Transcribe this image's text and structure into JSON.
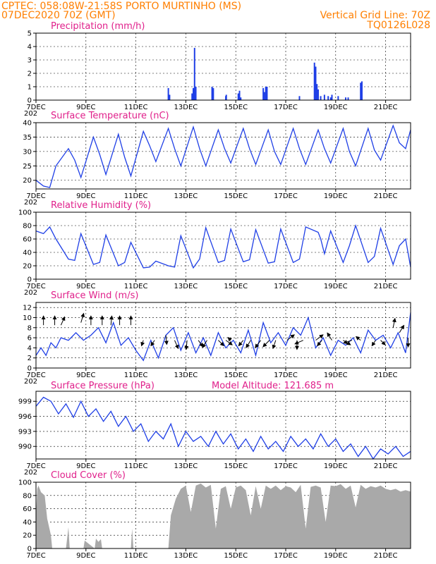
{
  "header": {
    "line1_left": "CPTEC:   058:08W-21:58S   PORTO MURTINHO (MS)",
    "line2_left": "07DEC2020 70Z (GMT)",
    "line2_right": "Vertical Grid Line: 70Z",
    "line3_right": "TQ0126L028"
  },
  "x_axis": {
    "labels": [
      "7DEC",
      "9DEC",
      "11DEC",
      "13DEC",
      "15DEC",
      "17DEC",
      "19DEC",
      "21DEC"
    ],
    "days": [
      7,
      9,
      11,
      13,
      15,
      17,
      19,
      21
    ],
    "range_days": [
      7,
      22
    ],
    "subscript": "202"
  },
  "model_altitude_label": "Model Altitude: 121.685 m",
  "colors": {
    "line": "#1f3fe6",
    "bar": "#1f3fe6",
    "cloud": "#a9a9a9",
    "arrow": "#000000",
    "title": "#e0208b",
    "header": "#ff7f00"
  },
  "chart_data": [
    {
      "type": "bar",
      "title": "Precipitation (mm/h)",
      "ylim": [
        0,
        5
      ],
      "yticks": [
        0,
        1,
        2,
        3,
        4,
        5
      ],
      "grid": true,
      "x_days": [
        12.3,
        12.35,
        13.25,
        13.3,
        13.35,
        13.4,
        14.05,
        14.1,
        14.6,
        14.62,
        15.1,
        15.15,
        15.2,
        16.1,
        16.15,
        16.2,
        16.25,
        17.55,
        18.15,
        18.2,
        18.25,
        18.3,
        18.4,
        18.55,
        18.7,
        18.8,
        18.85,
        19.1,
        19.4,
        19.5,
        20.0,
        20.05
      ],
      "values": [
        0.9,
        0.4,
        0.5,
        0.9,
        3.9,
        1.0,
        1.0,
        0.9,
        0.3,
        0.4,
        0.5,
        0.7,
        0.2,
        0.9,
        0.6,
        1.0,
        1.0,
        0.3,
        2.8,
        2.5,
        1.2,
        0.8,
        0.3,
        0.4,
        0.3,
        0.2,
        0.4,
        0.3,
        0.2,
        0.2,
        1.3,
        1.4
      ]
    },
    {
      "type": "line",
      "title": "Surface Temperature (nC)",
      "ylim": [
        17,
        40
      ],
      "yticks": [
        20,
        25,
        30,
        35,
        40
      ],
      "grid": true,
      "x_days": [
        7.0,
        7.3,
        7.55,
        7.8,
        8.3,
        8.55,
        8.8,
        9.3,
        9.55,
        9.8,
        10.3,
        10.55,
        10.8,
        11.3,
        11.55,
        11.8,
        12.3,
        12.55,
        12.8,
        13.3,
        13.55,
        13.8,
        14.3,
        14.55,
        14.8,
        15.3,
        15.55,
        15.8,
        16.3,
        16.55,
        16.8,
        17.3,
        17.55,
        17.8,
        18.3,
        18.55,
        18.8,
        19.3,
        19.55,
        19.8,
        20.3,
        20.55,
        20.8,
        21.3,
        21.55,
        21.8,
        22.0
      ],
      "values": [
        20,
        18,
        17.5,
        25,
        31,
        27,
        21,
        35,
        29,
        22,
        36,
        28,
        21.5,
        37,
        32,
        26.5,
        38,
        31,
        25,
        38.5,
        31,
        25,
        37.5,
        31,
        26,
        38,
        31,
        25.5,
        37.5,
        30,
        25.5,
        38,
        31,
        25.5,
        37.5,
        31,
        26,
        38,
        30,
        25,
        38,
        30.5,
        27,
        39,
        33,
        31,
        37.5
      ]
    },
    {
      "type": "line",
      "title": "Relative Humidity (%)",
      "ylim": [
        0,
        100
      ],
      "yticks": [
        0,
        20,
        40,
        60,
        80,
        100
      ],
      "grid": true,
      "x_days": [
        7.0,
        7.3,
        7.55,
        7.8,
        8.3,
        8.55,
        8.8,
        9.3,
        9.55,
        9.8,
        10.3,
        10.55,
        10.8,
        11.3,
        11.55,
        11.8,
        12.3,
        12.55,
        12.8,
        13.3,
        13.55,
        13.8,
        14.3,
        14.55,
        14.8,
        15.3,
        15.55,
        15.8,
        16.3,
        16.55,
        16.8,
        17.3,
        17.55,
        17.8,
        18.3,
        18.4,
        18.55,
        18.8,
        19.3,
        19.55,
        19.8,
        20.3,
        20.55,
        20.8,
        21.3,
        21.55,
        21.8,
        22.0
      ],
      "values": [
        72,
        68,
        78,
        60,
        30,
        28,
        68,
        22,
        25,
        66,
        20,
        25,
        55,
        17,
        18,
        27,
        20,
        18,
        65,
        17,
        30,
        77,
        25,
        28,
        75,
        26,
        29,
        74,
        24,
        26,
        75,
        25,
        30,
        78,
        70,
        60,
        38,
        72,
        25,
        50,
        80,
        25,
        34,
        76,
        22,
        50,
        60,
        18
      ]
    },
    {
      "type": "line",
      "title": "Surface Wind (m/s)",
      "ylim": [
        0,
        13
      ],
      "yticks": [
        0,
        2,
        4,
        6,
        8,
        10,
        12
      ],
      "grid": true,
      "x_days": [
        7.0,
        7.2,
        7.4,
        7.6,
        7.8,
        8.0,
        8.3,
        8.6,
        8.9,
        9.2,
        9.5,
        9.8,
        10.1,
        10.4,
        10.7,
        11.0,
        11.3,
        11.6,
        11.9,
        12.2,
        12.5,
        12.8,
        13.1,
        13.4,
        13.7,
        14.0,
        14.3,
        14.6,
        14.9,
        15.2,
        15.5,
        15.8,
        16.1,
        16.4,
        16.7,
        17.0,
        17.3,
        17.6,
        17.9,
        18.2,
        18.5,
        18.8,
        19.1,
        19.4,
        19.7,
        20.0,
        20.3,
        20.6,
        20.9,
        21.2,
        21.5,
        21.8,
        22.0
      ],
      "values": [
        2.5,
        4,
        2.5,
        5,
        4,
        6,
        5.5,
        7,
        5.5,
        6.5,
        8,
        5,
        9,
        4.5,
        6,
        3.5,
        1.5,
        5.5,
        2,
        6.5,
        8,
        3.5,
        7,
        3,
        6,
        2.5,
        7,
        4,
        5.5,
        3,
        7.5,
        2.5,
        9,
        5,
        7,
        4.5,
        8,
        6.5,
        10,
        4,
        6,
        2.5,
        5.5,
        4.5,
        6,
        3,
        7.5,
        5.5,
        6.5,
        4,
        7,
        3,
        11
      ]
    },
    {
      "type": "line",
      "title": "Surface Pressure (hPa)",
      "ylim": [
        987.5,
        1001
      ],
      "yticks": [
        990,
        993,
        996,
        999
      ],
      "grid": true,
      "x_days": [
        7.0,
        7.3,
        7.6,
        7.9,
        8.2,
        8.5,
        8.8,
        9.1,
        9.4,
        9.7,
        10.0,
        10.3,
        10.6,
        10.9,
        11.2,
        11.5,
        11.8,
        12.1,
        12.4,
        12.7,
        13.0,
        13.3,
        13.6,
        13.9,
        14.2,
        14.5,
        14.8,
        15.1,
        15.4,
        15.7,
        16.0,
        16.3,
        16.6,
        16.9,
        17.2,
        17.5,
        17.8,
        18.1,
        18.4,
        18.7,
        19.0,
        19.3,
        19.6,
        19.9,
        20.2,
        20.5,
        20.8,
        21.1,
        21.4,
        21.7,
        22.0
      ],
      "values": [
        998,
        999.8,
        999,
        996.5,
        998.5,
        995.8,
        999,
        996,
        997.5,
        995,
        997,
        994,
        996,
        993,
        994.5,
        991,
        993,
        991.5,
        994.5,
        990,
        993,
        991,
        992,
        990,
        993,
        990.5,
        992.5,
        989.5,
        991.5,
        989,
        992,
        989.5,
        991,
        989,
        992,
        990,
        991.5,
        989.5,
        992.5,
        990,
        991.5,
        989,
        990.5,
        988,
        990,
        987.5,
        989.5,
        988.5,
        990,
        988,
        989
      ]
    },
    {
      "type": "area",
      "title": "Cloud Cover (%)",
      "ylim": [
        0,
        100
      ],
      "yticks": [
        0,
        20,
        40,
        60,
        80,
        100
      ],
      "grid": true,
      "x_days": [
        7.0,
        7.05,
        7.1,
        7.2,
        7.35,
        7.45,
        7.6,
        7.65,
        8.2,
        8.3,
        8.35,
        8.9,
        8.95,
        9.35,
        9.4,
        9.5,
        9.6,
        9.65,
        10.8,
        10.85,
        10.9,
        12.3,
        12.4,
        12.6,
        12.8,
        13.0,
        13.2,
        13.4,
        13.6,
        13.8,
        14.0,
        14.2,
        14.4,
        14.6,
        14.8,
        15.0,
        15.2,
        15.4,
        15.6,
        15.8,
        16.0,
        16.2,
        16.4,
        16.6,
        16.8,
        17.0,
        17.2,
        17.4,
        17.6,
        17.8,
        18.0,
        18.2,
        18.4,
        18.6,
        18.8,
        19.0,
        19.2,
        19.4,
        19.6,
        19.8,
        20.0,
        20.2,
        20.4,
        20.6,
        20.8,
        21.0,
        21.2,
        21.4,
        21.6,
        21.8,
        22.0
      ],
      "values": [
        50,
        90,
        95,
        85,
        80,
        45,
        20,
        0,
        0,
        32,
        0,
        0,
        12,
        0,
        15,
        10,
        14,
        0,
        0,
        30,
        0,
        0,
        50,
        75,
        90,
        95,
        55,
        95,
        98,
        92,
        96,
        30,
        90,
        94,
        60,
        92,
        95,
        88,
        50,
        94,
        60,
        95,
        90,
        95,
        88,
        94,
        92,
        85,
        96,
        30,
        93,
        95,
        92,
        40,
        95,
        94,
        97,
        90,
        95,
        62,
        96,
        90,
        94,
        92,
        95,
        90,
        88,
        90,
        86,
        88,
        86
      ]
    }
  ],
  "wind_arrows": {
    "x_days": [
      7.3,
      7.75,
      8.0,
      8.8,
      9.2,
      9.65,
      10.0,
      10.35,
      10.8,
      11.3,
      11.75,
      12.2,
      12.55,
      13.05,
      13.5,
      13.85,
      14.3,
      14.6,
      14.8,
      15.3,
      15.6,
      16.0,
      16.35,
      16.6,
      17.05,
      17.45,
      17.7,
      18.2,
      18.45,
      18.85,
      19.3,
      19.65,
      20.0,
      20.6,
      20.8,
      21.3,
      21.55,
      21.9
    ],
    "y_values": [
      8.5,
      8.5,
      8.5,
      9,
      8.5,
      8.5,
      8.5,
      8.5,
      8.5,
      5.5,
      5.5,
      6.5,
      5.5,
      5.5,
      5.5,
      5.5,
      5.5,
      5.5,
      5.5,
      5.5,
      5.5,
      5.5,
      5.5,
      5.5,
      5.5,
      5.5,
      5.5,
      5.5,
      5.5,
      5.5,
      5.5,
      5.5,
      5.5,
      5.5,
      5.5,
      8.0,
      7.0,
      6.0
    ],
    "u": [
      0,
      0,
      0.4,
      0.3,
      0,
      0,
      0.1,
      0,
      0,
      -0.2,
      -0.4,
      0.1,
      0.4,
      -0.1,
      0.5,
      -0.5,
      0.6,
      0.7,
      -0.3,
      -0.5,
      -0.5,
      -0.6,
      -0.7,
      -0.3,
      0.8,
      0,
      -0.9,
      0.8,
      -0.5,
      -0.5,
      0.8,
      -0.9,
      -0.5,
      -0.4,
      0.5,
      0.2,
      0.5,
      0
    ],
    "v": [
      1,
      1,
      0.9,
      1,
      1,
      1,
      1,
      1,
      1,
      -0.6,
      -0.6,
      -1,
      -0.9,
      -1,
      -0.7,
      -0.8,
      -0.6,
      -0.5,
      0.3,
      -0.6,
      -0.8,
      -0.8,
      -0.7,
      -0.9,
      0.6,
      -1,
      -0.4,
      0.6,
      -0.6,
      0.8,
      -0.5,
      -0.3,
      0.4,
      -0.6,
      -0.5,
      1,
      0.8,
      -1
    ]
  }
}
